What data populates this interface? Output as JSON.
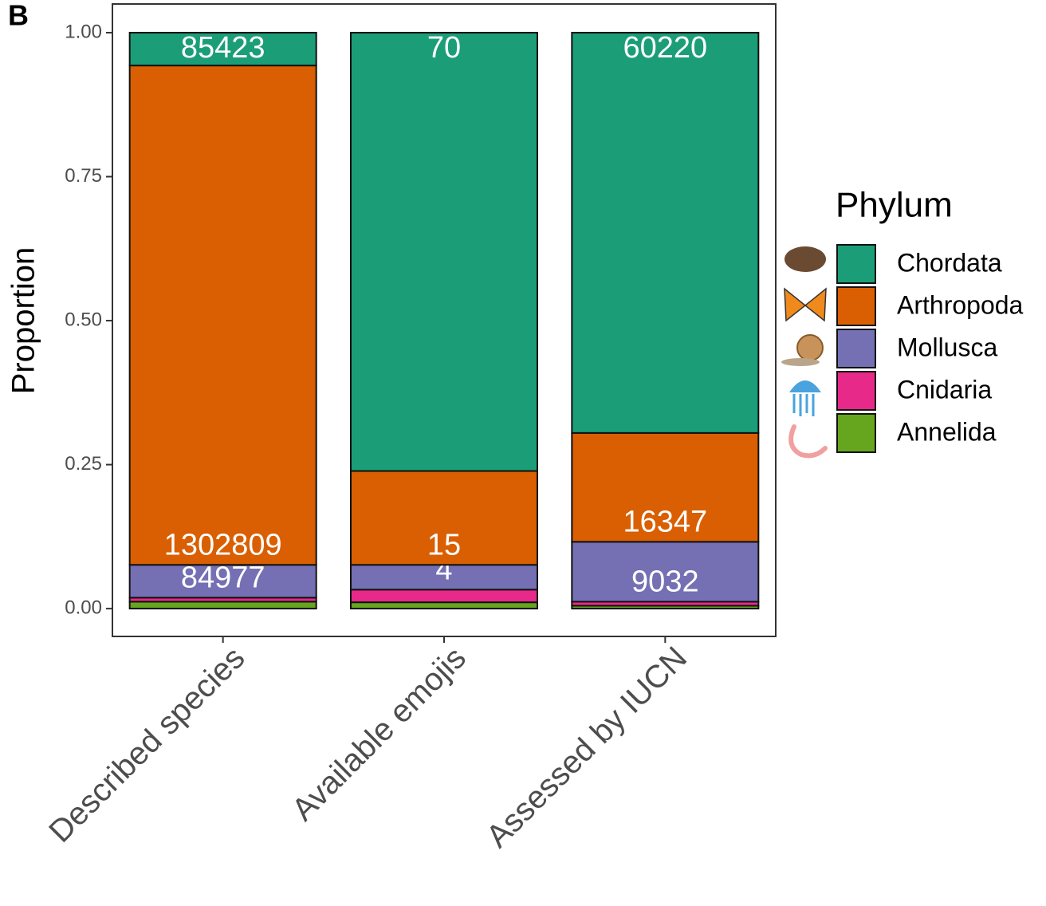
{
  "chart_data": {
    "type": "stacked-bar",
    "panel_label": "B",
    "y_label": "Proportion",
    "categories": [
      "Described species",
      "Available emojis",
      "Assessed by IUCN"
    ],
    "legend_title": "Phylum",
    "series": [
      {
        "name": "Chordata",
        "color": "#1b9e77",
        "values": [
          0.057,
          0.761,
          0.695
        ],
        "counts": [
          85423,
          70,
          60220
        ]
      },
      {
        "name": "Arthropoda",
        "color": "#d95f02",
        "values": [
          0.867,
          0.163,
          0.189
        ],
        "counts": [
          1302809,
          15,
          16347
        ]
      },
      {
        "name": "Mollusca",
        "color": "#7570b3",
        "values": [
          0.057,
          0.043,
          0.104
        ],
        "counts": [
          84977,
          4,
          9032
        ]
      },
      {
        "name": "Cnidaria",
        "color": "#e7298a",
        "values": [
          0.007,
          0.022,
          0.007
        ],
        "counts": [
          null,
          null,
          null
        ]
      },
      {
        "name": "Annelida",
        "color": "#66a61e",
        "values": [
          0.012,
          0.011,
          0.005
        ],
        "counts": [
          null,
          null,
          null
        ]
      }
    ],
    "ylim": [
      -0.0483,
      1.0498
    ],
    "yticks": [
      {
        "value": 0,
        "label": "0.00"
      },
      {
        "value": 0.25,
        "label": "0.25"
      },
      {
        "value": 0.5,
        "label": "0.50"
      },
      {
        "value": 0.75,
        "label": "0.75"
      },
      {
        "value": 1,
        "label": "1.00"
      }
    ]
  }
}
